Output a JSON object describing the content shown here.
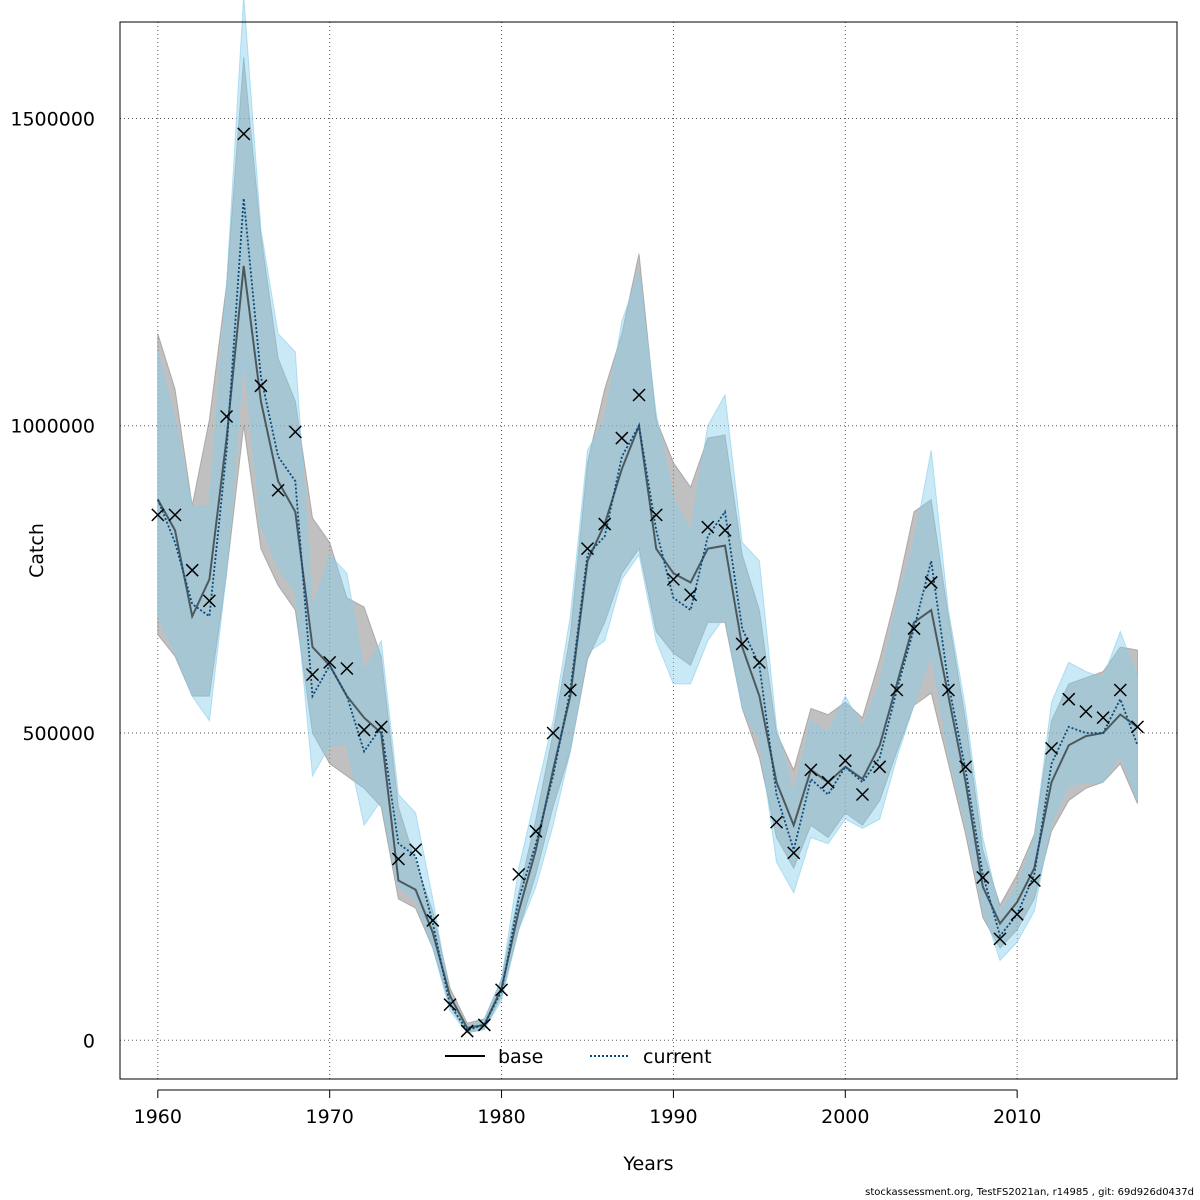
{
  "chart_data": {
    "type": "line",
    "xlabel": "Years",
    "ylabel": "Catch",
    "xlim": [
      1957.8,
      2019.3
    ],
    "ylim": [
      -63000,
      1657000
    ],
    "x_ticks": [
      1960,
      1970,
      1980,
      1990,
      2000,
      2010
    ],
    "x_tick_labels": [
      "1960",
      "1970",
      "1980",
      "1990",
      "2000",
      "2010"
    ],
    "y_ticks": [
      0,
      500000,
      1000000,
      1500000
    ],
    "y_tick_labels": [
      "0",
      "500000",
      "1000000",
      "1500000"
    ],
    "grid": true,
    "legend_position": "bottom",
    "x": [
      1960,
      1961,
      1962,
      1963,
      1964,
      1965,
      1966,
      1967,
      1968,
      1969,
      1970,
      1971,
      1972,
      1973,
      1974,
      1975,
      1976,
      1977,
      1978,
      1979,
      1980,
      1981,
      1982,
      1983,
      1984,
      1985,
      1986,
      1987,
      1988,
      1989,
      1990,
      1991,
      1992,
      1993,
      1994,
      1995,
      1996,
      1997,
      1998,
      1999,
      2000,
      2001,
      2002,
      2003,
      2004,
      2005,
      2006,
      2007,
      2008,
      2009,
      2010,
      2011,
      2012,
      2013,
      2014,
      2015,
      2016,
      2017
    ],
    "series": [
      {
        "name": "base",
        "color": "#000000",
        "band_color": "#8c8c8c",
        "values": [
          880000,
          830000,
          690000,
          750000,
          980000,
          1260000,
          1040000,
          910000,
          860000,
          640000,
          610000,
          560000,
          525000,
          500000,
          260000,
          245000,
          175000,
          72000,
          20000,
          25000,
          85000,
          210000,
          310000,
          440000,
          560000,
          780000,
          840000,
          930000,
          1000000,
          800000,
          760000,
          745000,
          800000,
          805000,
          640000,
          560000,
          420000,
          350000,
          440000,
          420000,
          445000,
          425000,
          480000,
          580000,
          680000,
          700000,
          560000,
          420000,
          250000,
          190000,
          225000,
          280000,
          420000,
          480000,
          495000,
          500000,
          530000,
          510000
        ],
        "lower": [
          660000,
          625000,
          560000,
          560000,
          760000,
          1000000,
          800000,
          740000,
          700000,
          500000,
          450000,
          430000,
          410000,
          380000,
          230000,
          215000,
          150000,
          55000,
          12000,
          18000,
          72000,
          180000,
          270000,
          380000,
          470000,
          620000,
          680000,
          760000,
          800000,
          665000,
          630000,
          610000,
          680000,
          680000,
          540000,
          460000,
          330000,
          280000,
          350000,
          330000,
          370000,
          350000,
          390000,
          470000,
          545000,
          565000,
          450000,
          335000,
          200000,
          150000,
          180000,
          230000,
          340000,
          390000,
          410000,
          420000,
          450000,
          385000
        ],
        "upper": [
          1150000,
          1060000,
          870000,
          1010000,
          1230000,
          1600000,
          1310000,
          1110000,
          1040000,
          850000,
          810000,
          720000,
          705000,
          625000,
          380000,
          290000,
          210000,
          85000,
          28000,
          35000,
          100000,
          240000,
          360000,
          500000,
          660000,
          940000,
          1060000,
          1150000,
          1280000,
          1010000,
          940000,
          900000,
          980000,
          985000,
          790000,
          700000,
          500000,
          440000,
          540000,
          530000,
          550000,
          525000,
          620000,
          730000,
          860000,
          880000,
          690000,
          520000,
          310000,
          220000,
          270000,
          335000,
          520000,
          580000,
          590000,
          600000,
          640000,
          635000
        ]
      },
      {
        "name": "current",
        "color": "#0a4a7a",
        "band_color": "#87ceeb",
        "values": [
          880000,
          810000,
          710000,
          690000,
          960000,
          1370000,
          1080000,
          950000,
          910000,
          560000,
          610000,
          560000,
          470000,
          510000,
          320000,
          300000,
          190000,
          58000,
          16000,
          26000,
          80000,
          230000,
          320000,
          430000,
          570000,
          790000,
          820000,
          950000,
          1000000,
          830000,
          720000,
          700000,
          820000,
          860000,
          670000,
          610000,
          400000,
          310000,
          425000,
          400000,
          445000,
          420000,
          460000,
          570000,
          670000,
          780000,
          580000,
          440000,
          270000,
          170000,
          205000,
          270000,
          450000,
          510000,
          500000,
          500000,
          555000,
          480000
        ],
        "lower": [
          690000,
          630000,
          560000,
          520000,
          760000,
          1110000,
          840000,
          770000,
          730000,
          430000,
          480000,
          480000,
          350000,
          390000,
          250000,
          230000,
          150000,
          48000,
          12000,
          18000,
          65000,
          180000,
          250000,
          350000,
          470000,
          630000,
          650000,
          750000,
          790000,
          650000,
          580000,
          580000,
          650000,
          690000,
          540000,
          490000,
          290000,
          240000,
          330000,
          320000,
          360000,
          345000,
          360000,
          460000,
          545000,
          630000,
          470000,
          355000,
          215000,
          130000,
          160000,
          210000,
          355000,
          415000,
          420000,
          420000,
          465000,
          390000
        ],
        "upper": [
          1120000,
          1010000,
          870000,
          870000,
          1230000,
          1700000,
          1320000,
          1150000,
          1120000,
          700000,
          790000,
          760000,
          600000,
          650000,
          400000,
          370000,
          230000,
          70000,
          22000,
          34000,
          100000,
          280000,
          400000,
          520000,
          690000,
          960000,
          1010000,
          1170000,
          1250000,
          1020000,
          880000,
          830000,
          1000000,
          1050000,
          810000,
          780000,
          510000,
          400000,
          520000,
          500000,
          560000,
          510000,
          580000,
          710000,
          810000,
          960000,
          700000,
          540000,
          330000,
          210000,
          250000,
          330000,
          550000,
          615000,
          600000,
          590000,
          665000,
          590000
        ]
      }
    ],
    "observed": {
      "marker": "x",
      "x": [
        1960,
        1961,
        1962,
        1963,
        1964,
        1965,
        1966,
        1967,
        1968,
        1969,
        1970,
        1971,
        1972,
        1973,
        1974,
        1975,
        1976,
        1977,
        1978,
        1979,
        1980,
        1981,
        1982,
        1983,
        1984,
        1985,
        1986,
        1987,
        1988,
        1989,
        1990,
        1991,
        1992,
        1993,
        1994,
        1995,
        1996,
        1997,
        1998,
        1999,
        2000,
        2001,
        2002,
        2003,
        2004,
        2005,
        2006,
        2007,
        2008,
        2009,
        2010,
        2011,
        2012,
        2013,
        2014,
        2015,
        2016,
        2017
      ],
      "values": [
        855000,
        855000,
        765000,
        715000,
        1015000,
        1475000,
        1065000,
        895000,
        990000,
        595000,
        615000,
        605000,
        505000,
        510000,
        295000,
        310000,
        195000,
        58000,
        15000,
        25000,
        82000,
        270000,
        340000,
        500000,
        570000,
        800000,
        840000,
        980000,
        1050000,
        855000,
        750000,
        725000,
        835000,
        830000,
        645000,
        615000,
        355000,
        305000,
        440000,
        420000,
        455000,
        400000,
        445000,
        570000,
        670000,
        745000,
        570000,
        445000,
        265000,
        165000,
        205000,
        260000,
        475000,
        555000,
        535000,
        525000,
        570000,
        510000
      ]
    }
  },
  "footer": "stockassessment.org, TestFS2021an, r14985 , git: 69d926d0437d"
}
